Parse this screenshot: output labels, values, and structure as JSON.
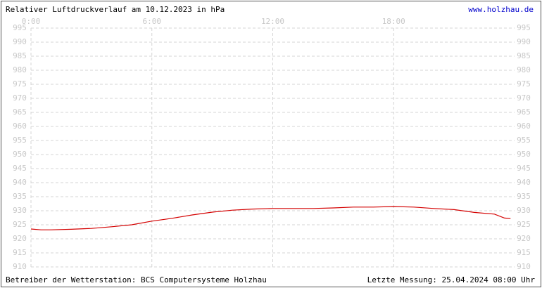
{
  "chart_data": {
    "type": "line",
    "title": "Relativer Luftdruckverlauf am 10.12.2023 in hPa",
    "link": "www.holzhau.de",
    "footer_left": "Betreiber der Wetterstation: BCS Computersysteme Holzhau",
    "footer_right": "Letzte Messung: 25.04.2024 08:00 Uhr",
    "x": [
      0,
      0.5,
      1,
      2,
      3,
      4,
      5,
      6,
      7,
      8,
      9,
      10,
      11,
      12,
      13,
      14,
      15,
      16,
      17,
      18,
      19,
      20,
      21,
      22,
      23,
      23.5,
      23.8
    ],
    "series": [
      {
        "name": "Luftdruck",
        "color": "#d40000",
        "values": [
          923.5,
          923.2,
          923.2,
          923.4,
          923.7,
          924.3,
          925.0,
          926.3,
          927.3,
          928.5,
          929.5,
          930.2,
          930.6,
          930.8,
          930.8,
          930.8,
          931.0,
          931.3,
          931.3,
          931.5,
          931.3,
          930.8,
          930.4,
          929.4,
          928.8,
          927.4,
          927.2
        ]
      }
    ],
    "xlim": [
      0,
      24
    ],
    "xticks": [
      {
        "value": 0,
        "label": "0:00"
      },
      {
        "value": 6,
        "label": "6:00"
      },
      {
        "value": 12,
        "label": "12:00"
      },
      {
        "value": 18,
        "label": "18:00"
      }
    ],
    "ylim": [
      910,
      995
    ],
    "yticks": [
      910,
      915,
      920,
      925,
      930,
      935,
      940,
      945,
      950,
      955,
      960,
      965,
      970,
      975,
      980,
      985,
      990,
      995
    ],
    "grid": true
  }
}
